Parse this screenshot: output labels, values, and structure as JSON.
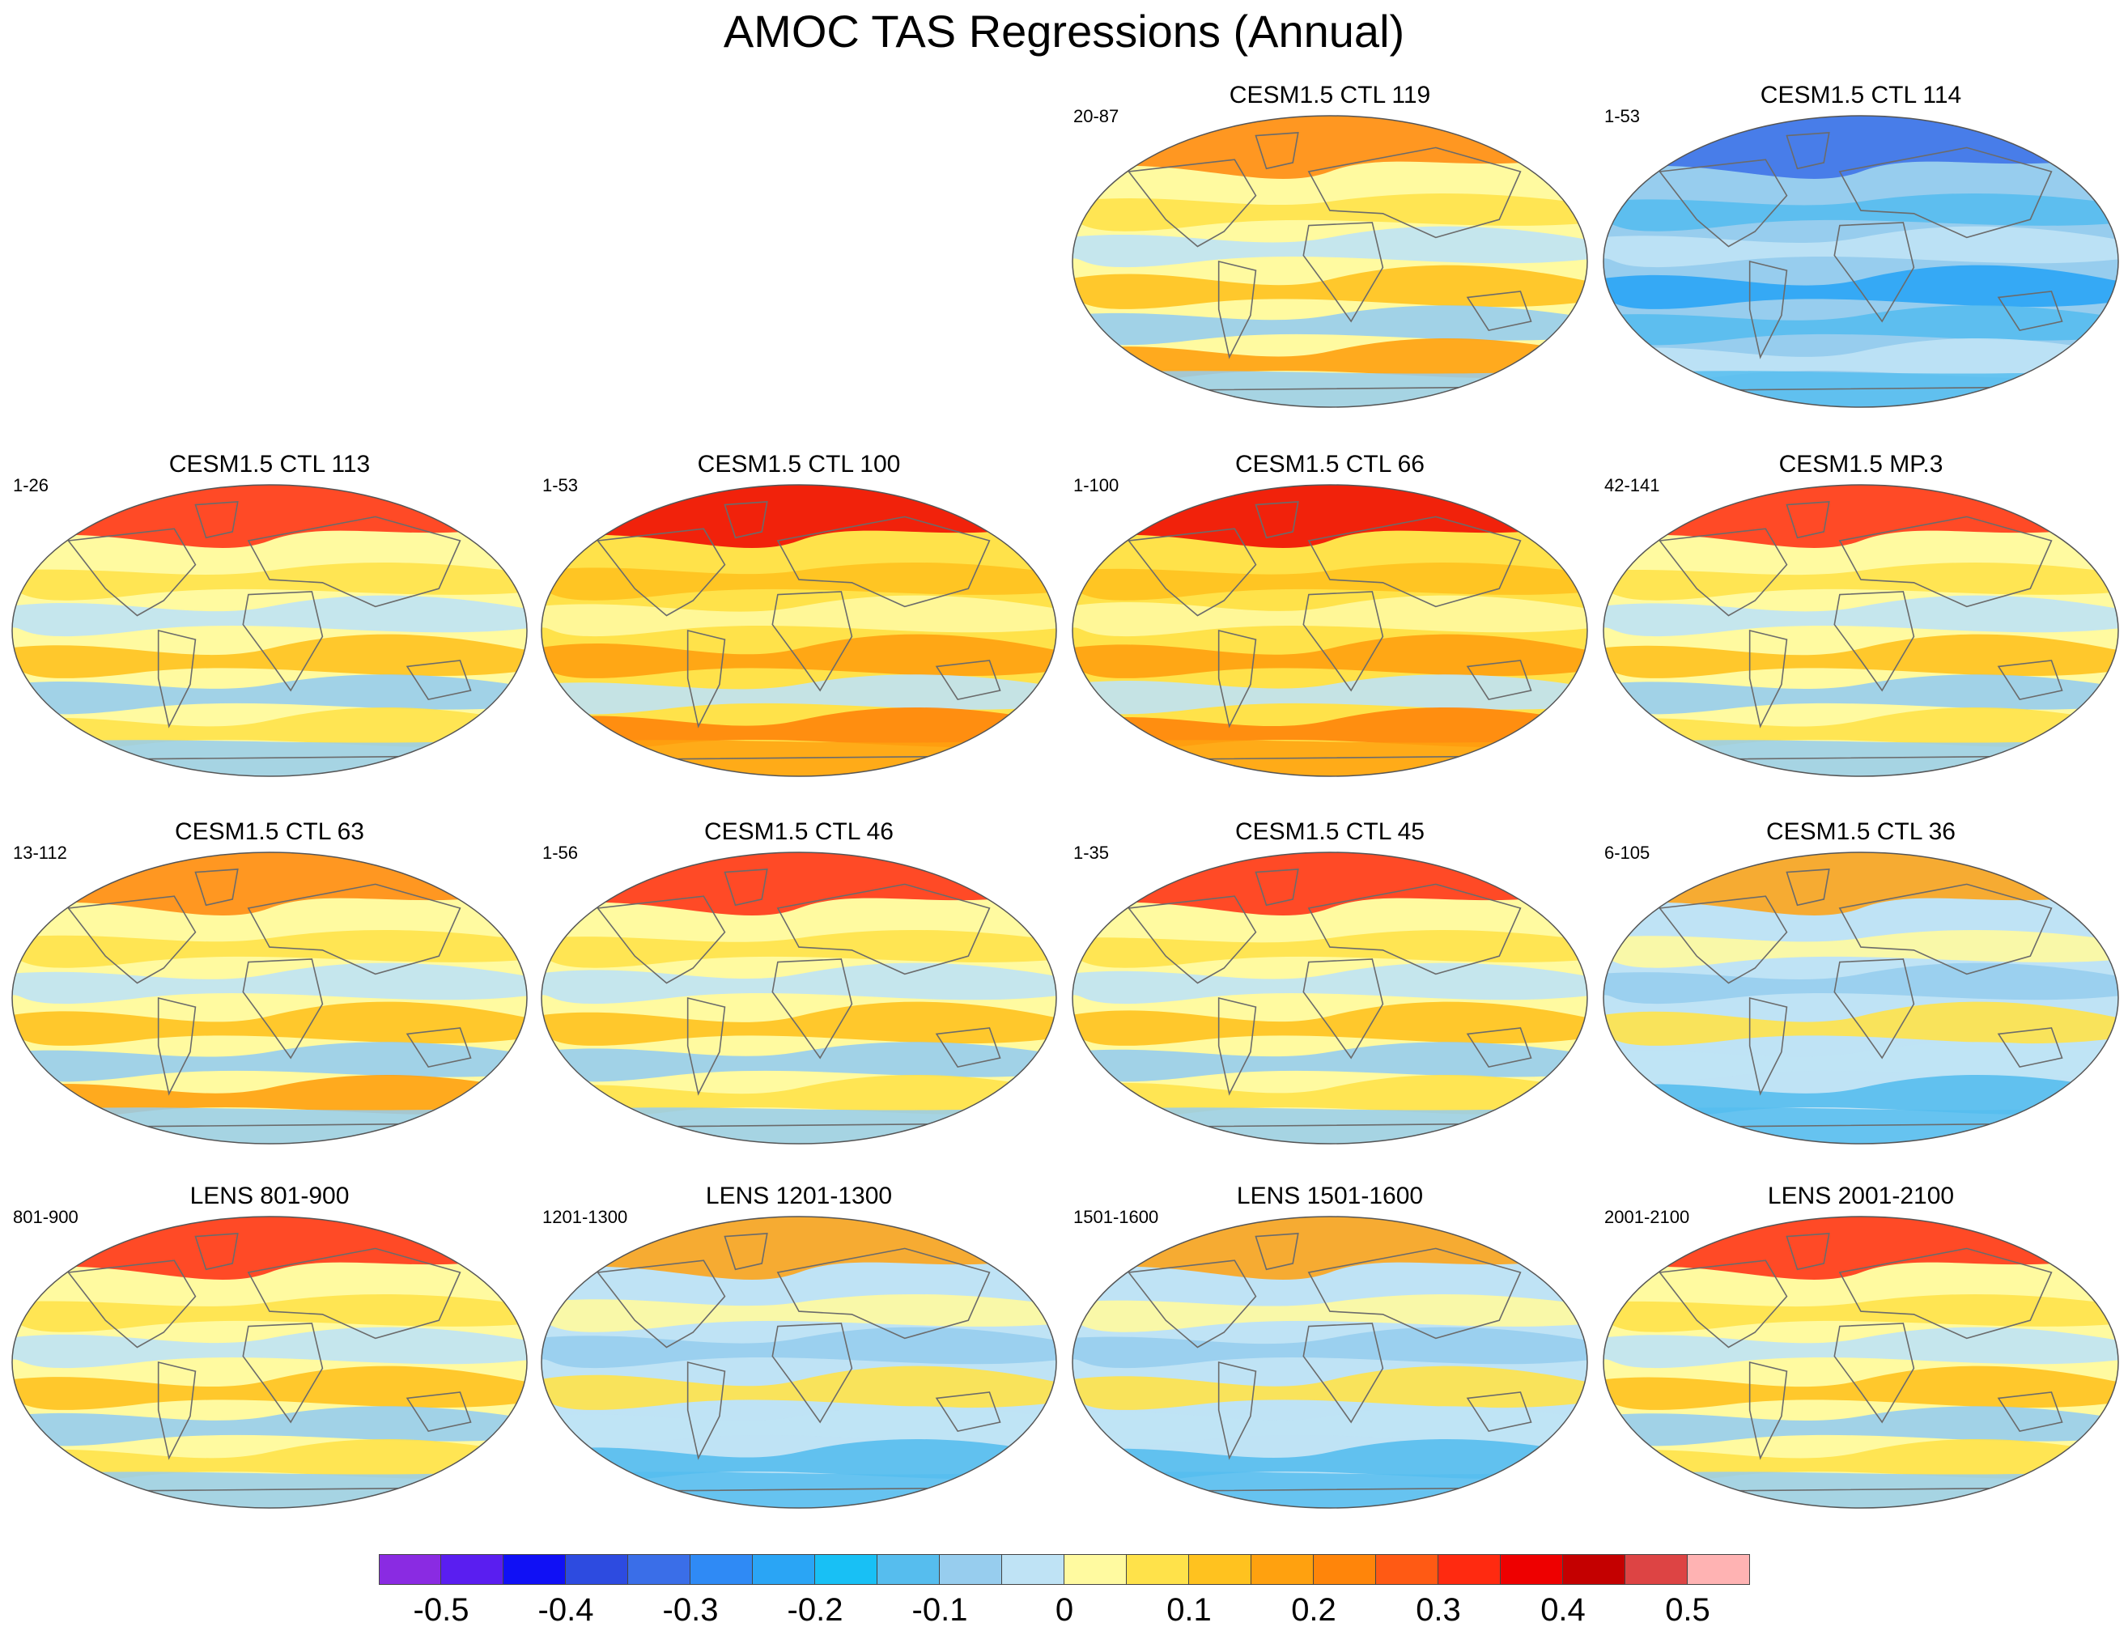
{
  "figure": {
    "title": "AMOC TAS Regressions (Annual)"
  },
  "panels": [
    {
      "title": "CESM1.5 CTL 119",
      "range": "20-87",
      "row": 0,
      "col": 2,
      "pattern": "mixed-warm"
    },
    {
      "title": "CESM1.5 CTL 114",
      "range": "1-53",
      "row": 0,
      "col": 3,
      "pattern": "cold"
    },
    {
      "title": "CESM1.5 CTL 113",
      "range": "1-26",
      "row": 1,
      "col": 0,
      "pattern": "arctic-warm"
    },
    {
      "title": "CESM1.5 CTL 100",
      "range": "1-53",
      "row": 1,
      "col": 1,
      "pattern": "very-warm"
    },
    {
      "title": "CESM1.5 CTL 66",
      "range": "1-100",
      "row": 1,
      "col": 2,
      "pattern": "very-warm"
    },
    {
      "title": "CESM1.5 MP.3",
      "range": "42-141",
      "row": 1,
      "col": 3,
      "pattern": "arctic-warm"
    },
    {
      "title": "CESM1.5 CTL 63",
      "range": "13-112",
      "row": 2,
      "col": 0,
      "pattern": "mixed-warm"
    },
    {
      "title": "CESM1.5 CTL 46",
      "range": "1-56",
      "row": 2,
      "col": 1,
      "pattern": "arctic-warm"
    },
    {
      "title": "CESM1.5 CTL 45",
      "range": "1-35",
      "row": 2,
      "col": 2,
      "pattern": "arctic-warm"
    },
    {
      "title": "CESM1.5 CTL 36",
      "range": "6-105",
      "row": 2,
      "col": 3,
      "pattern": "mixed-cool"
    },
    {
      "title": "LENS 801-900",
      "range": "801-900",
      "row": 3,
      "col": 0,
      "pattern": "arctic-warm"
    },
    {
      "title": "LENS 1201-1300",
      "range": "1201-1300",
      "row": 3,
      "col": 1,
      "pattern": "mixed-cool"
    },
    {
      "title": "LENS 1501-1600",
      "range": "1501-1600",
      "row": 3,
      "col": 2,
      "pattern": "mixed-cool"
    },
    {
      "title": "LENS 2001-2100",
      "range": "2001-2100",
      "row": 3,
      "col": 3,
      "pattern": "arctic-warm"
    }
  ],
  "colorbar": {
    "colors": [
      "#8a2be2",
      "#5a1ef0",
      "#1010f5",
      "#2d4be0",
      "#3a6ee8",
      "#2f8af5",
      "#2aa5f5",
      "#18c0f5",
      "#56bdee",
      "#97cdee",
      "#bfe3f5",
      "#fffaa0",
      "#ffe24a",
      "#ffc21f",
      "#ffa10f",
      "#ff850a",
      "#ff5a14",
      "#ff2a10",
      "#ee0000",
      "#c40000",
      "#dd4444",
      "#ffb3b3"
    ],
    "labels": [
      "-0.5",
      "-0.4",
      "-0.3",
      "-0.2",
      "-0.1",
      "0",
      "0.1",
      "0.2",
      "0.3",
      "0.4",
      "0.5"
    ]
  }
}
